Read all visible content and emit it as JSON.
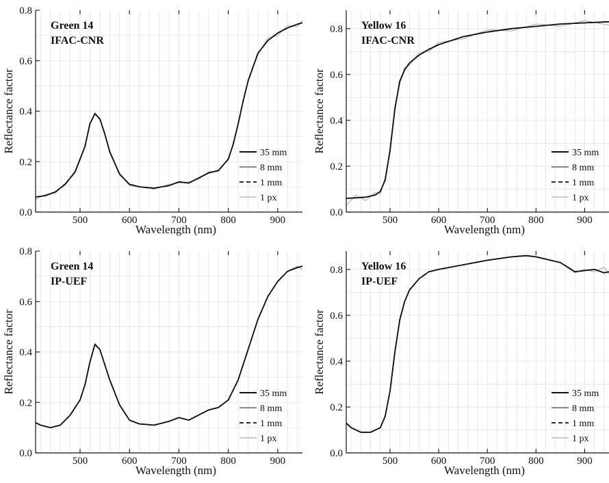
{
  "legend_entries": [
    "35 mm",
    "8 mm",
    "1 mm",
    "1 px"
  ],
  "series_styles": [
    {
      "color": "#111111",
      "dash": "",
      "width": 1.8
    },
    {
      "color": "#7a7a7a",
      "dash": "",
      "width": 1.6
    },
    {
      "color": "#111111",
      "dash": "6,4",
      "width": 1.6
    },
    {
      "color": "#b8b8b8",
      "dash": "",
      "width": 1.3
    }
  ],
  "chart_data": [
    {
      "type": "line",
      "label_lines": [
        "Green 14",
        "IFAC-CNR"
      ],
      "xlabel": "Wavelength (nm)",
      "ylabel": "Reflectance factor",
      "xlim": [
        410,
        950
      ],
      "ylim": [
        0.0,
        0.8
      ],
      "xticks": [
        500,
        600,
        700,
        800,
        900
      ],
      "yticks": [
        0.0,
        0.2,
        0.4,
        0.6,
        0.8
      ],
      "ytick_labels": [
        "0.0",
        "0.2",
        "0.4",
        "0.6",
        "0.8"
      ],
      "grid": true,
      "legend_position": "lower-right",
      "x": [
        410,
        430,
        450,
        470,
        490,
        510,
        520,
        530,
        540,
        550,
        560,
        580,
        600,
        620,
        650,
        680,
        700,
        720,
        740,
        760,
        780,
        800,
        810,
        820,
        830,
        840,
        860,
        880,
        900,
        920,
        940,
        950
      ],
      "series": [
        {
          "name": "35 mm",
          "values": [
            0.06,
            0.065,
            0.08,
            0.11,
            0.16,
            0.26,
            0.35,
            0.39,
            0.37,
            0.31,
            0.24,
            0.15,
            0.11,
            0.1,
            0.095,
            0.105,
            0.12,
            0.115,
            0.135,
            0.155,
            0.165,
            0.21,
            0.27,
            0.35,
            0.44,
            0.52,
            0.63,
            0.68,
            0.71,
            0.73,
            0.745,
            0.75
          ]
        },
        {
          "name": "8 mm",
          "values": [
            0.06,
            0.065,
            0.08,
            0.11,
            0.16,
            0.26,
            0.35,
            0.39,
            0.37,
            0.31,
            0.24,
            0.15,
            0.11,
            0.1,
            0.095,
            0.105,
            0.12,
            0.115,
            0.135,
            0.155,
            0.165,
            0.21,
            0.27,
            0.35,
            0.44,
            0.52,
            0.63,
            0.68,
            0.71,
            0.73,
            0.745,
            0.75
          ]
        },
        {
          "name": "1 mm",
          "values": [
            0.06,
            0.065,
            0.08,
            0.11,
            0.16,
            0.26,
            0.35,
            0.39,
            0.37,
            0.31,
            0.24,
            0.15,
            0.11,
            0.1,
            0.095,
            0.105,
            0.12,
            0.115,
            0.135,
            0.155,
            0.165,
            0.21,
            0.27,
            0.35,
            0.44,
            0.52,
            0.63,
            0.68,
            0.71,
            0.73,
            0.745,
            0.75
          ]
        },
        {
          "name": "1 px",
          "values": [
            0.05,
            0.07,
            0.075,
            0.115,
            0.155,
            0.265,
            0.345,
            0.395,
            0.365,
            0.315,
            0.235,
            0.155,
            0.105,
            0.1,
            0.09,
            0.11,
            0.115,
            0.12,
            0.13,
            0.16,
            0.16,
            0.215,
            0.265,
            0.355,
            0.435,
            0.525,
            0.625,
            0.69,
            0.7,
            0.74,
            0.735,
            0.76
          ]
        }
      ]
    },
    {
      "type": "line",
      "label_lines": [
        "Yellow 16",
        "IFAC-CNR"
      ],
      "xlabel": "Wavelength (nm)",
      "ylabel": "Reflectance factor",
      "xlim": [
        410,
        950
      ],
      "ylim": [
        0.0,
        0.88
      ],
      "xticks": [
        500,
        600,
        700,
        800,
        900
      ],
      "yticks": [
        0.0,
        0.2,
        0.4,
        0.6,
        0.8
      ],
      "ytick_labels": [
        "0.0",
        "0.2",
        "0.4",
        "0.6",
        "0.8"
      ],
      "grid": true,
      "legend_position": "lower-right",
      "x": [
        410,
        430,
        450,
        470,
        480,
        490,
        500,
        510,
        520,
        530,
        540,
        560,
        580,
        600,
        650,
        700,
        750,
        800,
        850,
        900,
        950
      ],
      "series": [
        {
          "name": "35 mm",
          "values": [
            0.06,
            0.062,
            0.065,
            0.075,
            0.09,
            0.14,
            0.27,
            0.45,
            0.57,
            0.62,
            0.65,
            0.685,
            0.71,
            0.73,
            0.765,
            0.785,
            0.8,
            0.81,
            0.82,
            0.825,
            0.83
          ]
        },
        {
          "name": "8 mm",
          "values": [
            0.06,
            0.062,
            0.065,
            0.075,
            0.09,
            0.14,
            0.27,
            0.45,
            0.57,
            0.62,
            0.65,
            0.685,
            0.71,
            0.73,
            0.765,
            0.785,
            0.8,
            0.81,
            0.82,
            0.825,
            0.83
          ]
        },
        {
          "name": "1 mm",
          "values": [
            0.06,
            0.062,
            0.065,
            0.075,
            0.09,
            0.14,
            0.27,
            0.45,
            0.57,
            0.62,
            0.65,
            0.685,
            0.71,
            0.73,
            0.765,
            0.785,
            0.8,
            0.81,
            0.82,
            0.825,
            0.83
          ]
        },
        {
          "name": "1 px",
          "values": [
            0.03,
            0.075,
            0.05,
            0.085,
            0.08,
            0.15,
            0.26,
            0.46,
            0.56,
            0.63,
            0.64,
            0.695,
            0.7,
            0.74,
            0.755,
            0.795,
            0.79,
            0.82,
            0.81,
            0.835,
            0.815
          ]
        }
      ]
    },
    {
      "type": "line",
      "label_lines": [
        "Green 14",
        "IP-UEF"
      ],
      "xlabel": "Wavelength (nm)",
      "ylabel": "Reflectance factor",
      "xlim": [
        410,
        950
      ],
      "ylim": [
        0.0,
        0.8
      ],
      "xticks": [
        500,
        600,
        700,
        800,
        900
      ],
      "yticks": [
        0.0,
        0.2,
        0.4,
        0.6,
        0.8
      ],
      "ytick_labels": [
        "0.0",
        "0.2",
        "0.4",
        "0.6",
        "0.8"
      ],
      "grid": true,
      "legend_position": "lower-right",
      "x": [
        410,
        420,
        440,
        460,
        480,
        500,
        510,
        520,
        530,
        540,
        550,
        560,
        580,
        600,
        620,
        650,
        680,
        700,
        720,
        740,
        760,
        780,
        800,
        820,
        840,
        860,
        880,
        900,
        920,
        940,
        950
      ],
      "series": [
        {
          "name": "35 mm",
          "values": [
            0.12,
            0.11,
            0.1,
            0.11,
            0.15,
            0.21,
            0.27,
            0.36,
            0.43,
            0.41,
            0.35,
            0.29,
            0.19,
            0.13,
            0.115,
            0.11,
            0.125,
            0.14,
            0.13,
            0.15,
            0.17,
            0.18,
            0.21,
            0.29,
            0.41,
            0.53,
            0.62,
            0.68,
            0.72,
            0.735,
            0.74
          ]
        },
        {
          "name": "8 mm",
          "values": [
            0.12,
            0.11,
            0.1,
            0.11,
            0.15,
            0.21,
            0.27,
            0.36,
            0.43,
            0.41,
            0.35,
            0.29,
            0.19,
            0.13,
            0.115,
            0.11,
            0.125,
            0.14,
            0.13,
            0.15,
            0.17,
            0.18,
            0.21,
            0.29,
            0.41,
            0.53,
            0.62,
            0.68,
            0.72,
            0.735,
            0.74
          ]
        },
        {
          "name": "1 mm",
          "values": [
            0.12,
            0.11,
            0.1,
            0.11,
            0.15,
            0.21,
            0.27,
            0.36,
            0.43,
            0.41,
            0.35,
            0.29,
            0.19,
            0.13,
            0.115,
            0.11,
            0.125,
            0.14,
            0.13,
            0.15,
            0.17,
            0.18,
            0.21,
            0.29,
            0.41,
            0.53,
            0.62,
            0.68,
            0.72,
            0.735,
            0.74
          ]
        },
        {
          "name": "1 px",
          "values": [
            0.12,
            0.11,
            0.1,
            0.11,
            0.15,
            0.21,
            0.27,
            0.36,
            0.435,
            0.41,
            0.35,
            0.29,
            0.19,
            0.13,
            0.115,
            0.11,
            0.125,
            0.14,
            0.13,
            0.15,
            0.17,
            0.18,
            0.21,
            0.29,
            0.41,
            0.53,
            0.62,
            0.68,
            0.72,
            0.74,
            0.725
          ]
        }
      ]
    },
    {
      "type": "line",
      "label_lines": [
        "Yellow 16",
        "IP-UEF"
      ],
      "xlabel": "Wavelength (nm)",
      "ylabel": "Reflectance factor",
      "xlim": [
        410,
        950
      ],
      "ylim": [
        0.0,
        0.88
      ],
      "xticks": [
        500,
        600,
        700,
        800,
        900
      ],
      "yticks": [
        0.0,
        0.2,
        0.4,
        0.6,
        0.8
      ],
      "ytick_labels": [
        "0.0",
        "0.2",
        "0.4",
        "0.6",
        "0.8"
      ],
      "grid": true,
      "legend_position": "lower-right",
      "x": [
        410,
        420,
        440,
        460,
        480,
        490,
        500,
        510,
        520,
        530,
        540,
        560,
        580,
        600,
        650,
        700,
        750,
        780,
        800,
        850,
        880,
        900,
        920,
        940,
        950
      ],
      "series": [
        {
          "name": "35 mm",
          "values": [
            0.13,
            0.11,
            0.09,
            0.09,
            0.11,
            0.16,
            0.27,
            0.44,
            0.58,
            0.66,
            0.71,
            0.76,
            0.79,
            0.8,
            0.82,
            0.84,
            0.855,
            0.86,
            0.855,
            0.83,
            0.79,
            0.795,
            0.8,
            0.785,
            0.79
          ]
        },
        {
          "name": "8 mm",
          "values": [
            0.13,
            0.11,
            0.09,
            0.09,
            0.11,
            0.16,
            0.27,
            0.44,
            0.58,
            0.66,
            0.71,
            0.76,
            0.79,
            0.8,
            0.82,
            0.84,
            0.855,
            0.86,
            0.855,
            0.83,
            0.79,
            0.795,
            0.8,
            0.785,
            0.79
          ]
        },
        {
          "name": "1 mm",
          "values": [
            0.13,
            0.11,
            0.09,
            0.09,
            0.11,
            0.16,
            0.27,
            0.44,
            0.58,
            0.66,
            0.71,
            0.76,
            0.79,
            0.8,
            0.82,
            0.84,
            0.855,
            0.86,
            0.855,
            0.83,
            0.79,
            0.795,
            0.8,
            0.785,
            0.79
          ]
        },
        {
          "name": "1 px",
          "values": [
            0.13,
            0.11,
            0.09,
            0.09,
            0.11,
            0.16,
            0.27,
            0.44,
            0.58,
            0.66,
            0.71,
            0.76,
            0.79,
            0.8,
            0.82,
            0.84,
            0.855,
            0.86,
            0.855,
            0.83,
            0.785,
            0.8,
            0.79,
            0.81,
            0.78
          ]
        }
      ]
    }
  ]
}
